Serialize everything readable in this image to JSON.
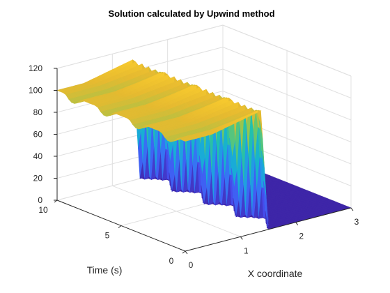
{
  "chart_data": {
    "type": "surface",
    "title": "Solution calculated by Upwind method",
    "xlabel": "X coordinate",
    "ylabel": "Time (s)",
    "zlabel": "",
    "xlim": [
      0,
      3
    ],
    "ylim": [
      0,
      10
    ],
    "zlim": [
      0,
      120
    ],
    "x_ticks": [
      "0",
      "1",
      "2",
      "3"
    ],
    "y_ticks": [
      "0",
      "5",
      "10"
    ],
    "z_ticks": [
      "0",
      "20",
      "40",
      "60",
      "80",
      "100",
      "120"
    ],
    "grid": true,
    "colormap": "parula",
    "surface": {
      "x_front_edge": 1.5,
      "plateau_value": 100,
      "base_value": 0,
      "time_oscillations": 4,
      "front_ripple_peak": 110
    }
  },
  "colors": {
    "low": "#3e26a8",
    "mid": "#12beb9",
    "high": "#f9fb0e",
    "grid": "#e0e0e0",
    "axis": "#262626"
  }
}
